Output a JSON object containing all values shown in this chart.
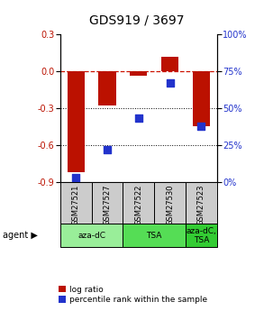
{
  "title": "GDS919 / 3697",
  "samples": [
    "GSM27521",
    "GSM27527",
    "GSM27522",
    "GSM27530",
    "GSM27523"
  ],
  "log_ratio": [
    -0.82,
    -0.28,
    -0.04,
    0.12,
    -0.45
  ],
  "percentile_rank": [
    3,
    22,
    43,
    67,
    38
  ],
  "agents": [
    {
      "label": "aza-dC",
      "span": [
        0,
        2
      ],
      "color": "#99ee99"
    },
    {
      "label": "TSA",
      "span": [
        2,
        4
      ],
      "color": "#55dd55"
    },
    {
      "label": "aza-dC,\nTSA",
      "span": [
        4,
        5
      ],
      "color": "#33cc33"
    }
  ],
  "ylim_left": [
    -0.9,
    0.3
  ],
  "ylim_right": [
    0,
    100
  ],
  "bar_color": "#bb1100",
  "dot_color": "#2233cc",
  "hline_color": "#cc1100",
  "dot_size": 28,
  "bar_width": 0.55,
  "sample_box_color": "#cccccc",
  "title_fontsize": 10,
  "tick_fontsize": 7,
  "label_fontsize": 7
}
